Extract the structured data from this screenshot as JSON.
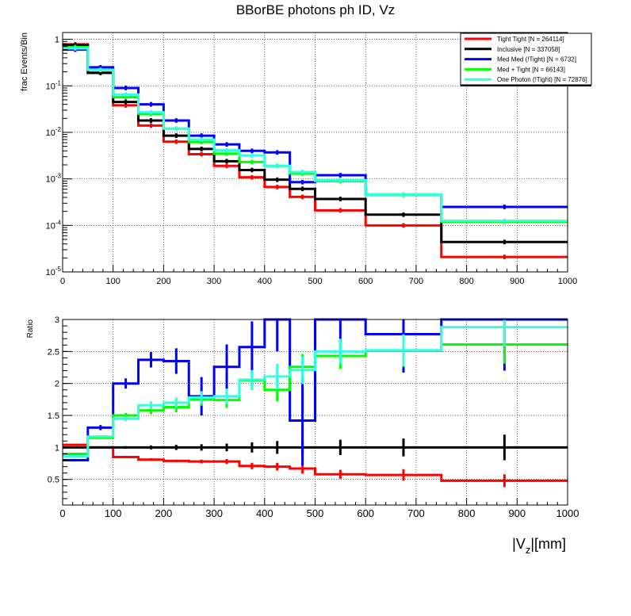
{
  "colors": {
    "tight_tight": "#ff0000",
    "inclusive": "#000000",
    "med_med": "#0000ff",
    "med_tight": "#00ff00",
    "one_photon": "#33ffdd"
  },
  "chart_data": [
    {
      "type": "line",
      "step": true,
      "title": "BBorBE photons ph ID, Vz",
      "xlabel": "",
      "ylabel": "frac Events/Bin",
      "yscale": "log",
      "xlim": [
        0,
        1000
      ],
      "ylim": [
        1e-05,
        1.4
      ],
      "x_ticks": [
        "0",
        "100",
        "200",
        "300",
        "400",
        "500",
        "600",
        "700",
        "800",
        "900",
        "1000"
      ],
      "y_ticks": [
        {
          "value": 1,
          "base": "1",
          "exp": ""
        },
        {
          "value": 0.1,
          "base": "10",
          "exp": "-1"
        },
        {
          "value": 0.01,
          "base": "10",
          "exp": "-2"
        },
        {
          "value": 0.001,
          "base": "10",
          "exp": "-3"
        },
        {
          "value": 0.0001,
          "base": "10",
          "exp": "-4"
        },
        {
          "value": 1e-05,
          "base": "10",
          "exp": "-5"
        }
      ],
      "bin_edges": [
        0,
        50,
        100,
        150,
        200,
        250,
        300,
        350,
        400,
        450,
        500,
        600,
        750,
        1000
      ],
      "grid": true,
      "legend_position": "top-right",
      "series": [
        {
          "name": "Tight Tight [N = 264114]",
          "color_key": "tight_tight",
          "values": [
            0.78,
            0.19,
            0.038,
            0.014,
            0.0063,
            0.0034,
            0.0019,
            0.00108,
            0.00067,
            0.00041,
            0.00021,
            0.0001,
            2.1e-05
          ]
        },
        {
          "name": "Inclusive [N = 337058]",
          "color_key": "inclusive",
          "values": [
            0.75,
            0.19,
            0.045,
            0.018,
            0.0085,
            0.0044,
            0.0024,
            0.00155,
            0.00096,
            0.00061,
            0.00037,
            0.00017,
            4.4e-05
          ]
        },
        {
          "name": "Med Med (!Tight) [N = 6732]",
          "color_key": "med_med",
          "values": [
            0.6,
            0.25,
            0.09,
            0.04,
            0.018,
            0.0085,
            0.0055,
            0.004,
            0.0037,
            0.00085,
            0.0012,
            0.00046,
            0.00025
          ]
        },
        {
          "name": "Med + Tight [N = 66143]",
          "color_key": "med_tight",
          "values": [
            0.68,
            0.22,
            0.057,
            0.025,
            0.012,
            0.0062,
            0.0035,
            0.0023,
            0.0019,
            0.0013,
            0.0009,
            0.00045,
            0.00012
          ]
        },
        {
          "name": "One Photon (!Tight) [N = 72876]",
          "color_key": "one_photon",
          "values": [
            0.64,
            0.22,
            0.065,
            0.027,
            0.012,
            0.007,
            0.0041,
            0.0032,
            0.0019,
            0.0014,
            0.00094,
            0.00046,
            0.000125
          ]
        }
      ]
    },
    {
      "type": "line",
      "step": true,
      "title": "",
      "xlabel": "|V_z|[mm]",
      "xlabel_main": "|V",
      "xlabel_sub": "z",
      "xlabel_rest": "|[mm]",
      "ylabel": "Ratio",
      "xlim": [
        0,
        1000
      ],
      "ylim": [
        0.1,
        3
      ],
      "x_ticks": [
        "0",
        "100",
        "200",
        "300",
        "400",
        "500",
        "600",
        "700",
        "800",
        "900",
        "1000"
      ],
      "y_ticks": [
        {
          "value": 0.5,
          "label": "0.5"
        },
        {
          "value": 1,
          "label": "1"
        },
        {
          "value": 1.5,
          "label": "1.5"
        },
        {
          "value": 2,
          "label": "2"
        },
        {
          "value": 2.5,
          "label": "2.5"
        },
        {
          "value": 3,
          "label": "3"
        }
      ],
      "bin_edges": [
        0,
        50,
        100,
        150,
        200,
        250,
        300,
        350,
        400,
        450,
        500,
        600,
        750,
        1000
      ],
      "grid": true,
      "series": [
        {
          "name": "Tight Tight",
          "color_key": "tight_tight",
          "values": [
            1.04,
            1.0,
            0.85,
            0.81,
            0.79,
            0.78,
            0.78,
            0.71,
            0.7,
            0.67,
            0.58,
            0.57,
            0.48
          ],
          "errors": [
            0.01,
            0.01,
            0.02,
            0.02,
            0.02,
            0.03,
            0.04,
            0.05,
            0.06,
            0.08,
            0.07,
            0.09,
            0.1
          ]
        },
        {
          "name": "Inclusive",
          "color_key": "inclusive",
          "values": [
            1.0,
            1.0,
            1.0,
            1.0,
            1.0,
            1.0,
            1.0,
            1.0,
            1.0,
            1.0,
            1.0,
            1.0,
            1.0
          ],
          "errors": [
            0.01,
            0.01,
            0.02,
            0.03,
            0.04,
            0.05,
            0.06,
            0.08,
            0.1,
            0.12,
            0.12,
            0.14,
            0.2
          ]
        },
        {
          "name": "Med Med (!Tight)",
          "color_key": "med_med",
          "values": [
            0.8,
            1.31,
            2.0,
            2.37,
            2.35,
            1.8,
            2.26,
            2.57,
            3.0,
            1.42,
            3.0,
            2.77,
            3.0
          ],
          "errors": [
            0.02,
            0.04,
            0.08,
            0.12,
            0.2,
            0.3,
            0.35,
            0.4,
            0.5,
            0.7,
            0.6,
            0.6,
            0.8
          ]
        },
        {
          "name": "Med + Tight",
          "color_key": "med_tight",
          "values": [
            0.9,
            1.15,
            1.5,
            1.58,
            1.63,
            1.75,
            1.74,
            2.05,
            1.9,
            2.26,
            2.43,
            2.51,
            2.61
          ],
          "errors": [
            0.01,
            0.02,
            0.04,
            0.06,
            0.08,
            0.1,
            0.12,
            0.15,
            0.18,
            0.2,
            0.2,
            0.25,
            0.3
          ]
        },
        {
          "name": "One Photon (!Tight)",
          "color_key": "one_photon",
          "values": [
            0.86,
            1.17,
            1.45,
            1.66,
            1.7,
            1.78,
            1.8,
            2.06,
            2.11,
            2.21,
            2.5,
            2.52,
            2.88
          ],
          "errors": [
            0.01,
            0.02,
            0.04,
            0.06,
            0.08,
            0.1,
            0.12,
            0.15,
            0.2,
            0.22,
            0.2,
            0.25,
            0.3
          ]
        }
      ]
    }
  ]
}
